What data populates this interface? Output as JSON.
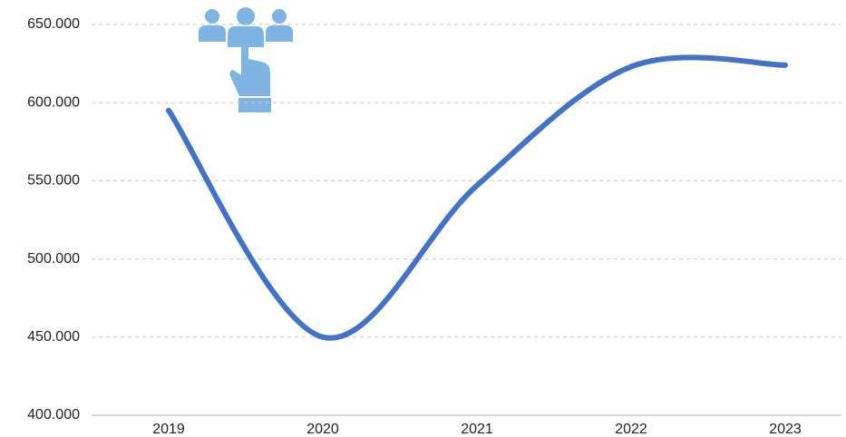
{
  "chart_data": {
    "type": "line",
    "categories": [
      "2019",
      "2020",
      "2021",
      "2022",
      "2023"
    ],
    "series": [
      {
        "color": "#4472c4",
        "values": [
          595000,
          450000,
          547000,
          623000,
          624000
        ]
      }
    ],
    "ylim": [
      400000,
      650000
    ],
    "yticks": [
      {
        "value": 400000,
        "label": "400.000"
      },
      {
        "value": 450000,
        "label": "450.000"
      },
      {
        "value": 500000,
        "label": "500.000"
      },
      {
        "value": 550000,
        "label": "550.000"
      },
      {
        "value": 600000,
        "label": "600.000"
      },
      {
        "value": 650000,
        "label": "650.000"
      }
    ],
    "grid": true
  }
}
